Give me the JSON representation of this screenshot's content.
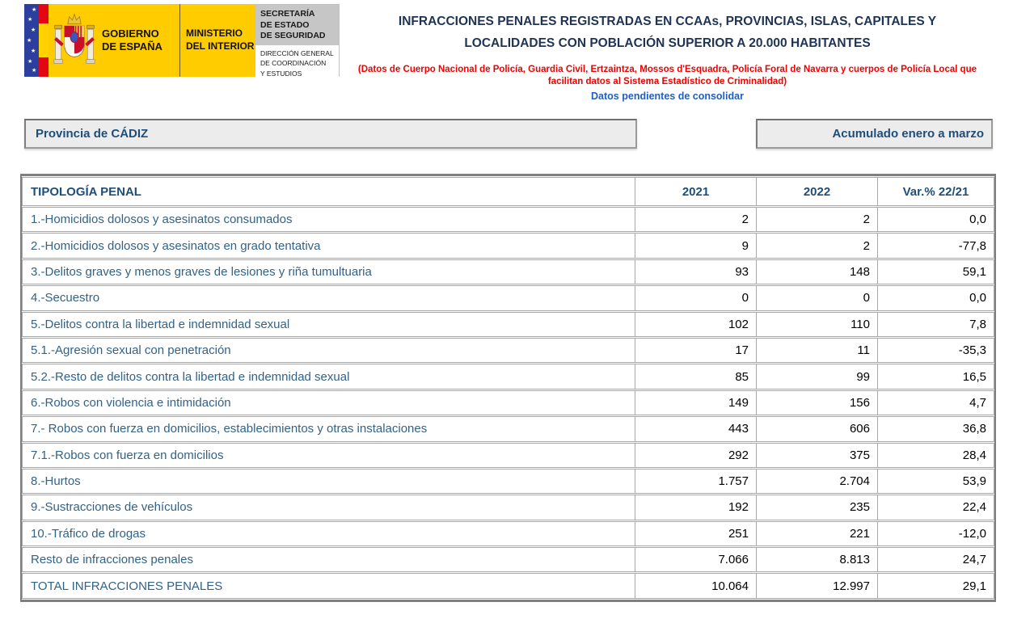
{
  "logo": {
    "gobierno_line1": "GOBIERNO",
    "gobierno_line2": "DE ESPAÑA",
    "ministerio_line1": "MINISTERIO",
    "ministerio_line2": "DEL INTERIOR",
    "secretaria": "SECRETARÍA\nDE ESTADO\nDE SEGURIDAD",
    "direccion": "DIRECCIÓN GENERAL\nDE COORDINACIÓN\nY ESTUDIOS"
  },
  "header": {
    "title_line1": "INFRACCIONES PENALES REGISTRADAS EN CCAAs, PROVINCIAS, ISLAS, CAPITALES Y",
    "title_line2": "LOCALIDADES CON POBLACIÓN SUPERIOR A 20.000 HABITANTES",
    "source_line1": "(Datos de Cuerpo Nacional de Policía, Guardia Civil, Ertzaintza, Mossos d'Esquadra, Policía Foral de Navarra y cuerpos de Policía Local que",
    "source_line2": "facilitan datos al Sistema Estadístico de Criminalidad)",
    "pending_note": "Datos pendientes de consolidar"
  },
  "filters": {
    "province": "Provincia de CÁDIZ",
    "period": "Acumulado enero a marzo"
  },
  "colors": {
    "accent_navy": "#1f4e79",
    "label_blue": "#336287",
    "note_red": "#f20000",
    "note_blue": "#1f5fc4",
    "logo_yellow": "#ffcc00",
    "eu_blue": "#2c3e9e",
    "flag_red": "#e30613"
  },
  "table": {
    "headers": [
      "TIPOLOGÍA PENAL",
      "2021",
      "2022",
      "Var.% 22/21"
    ],
    "rows": [
      {
        "label": "1.-Homicidios dolosos y asesinatos consumados",
        "y2021": "2",
        "y2022": "2",
        "var": "0,0"
      },
      {
        "label": "2.-Homicidios dolosos y asesinatos en grado tentativa",
        "y2021": "9",
        "y2022": "2",
        "var": "-77,8"
      },
      {
        "label": "3.-Delitos graves y menos graves de lesiones y riña tumultuaria",
        "y2021": "93",
        "y2022": "148",
        "var": "59,1"
      },
      {
        "label": "4.-Secuestro",
        "y2021": "0",
        "y2022": "0",
        "var": "0,0"
      },
      {
        "label": "5.-Delitos contra la libertad e indemnidad sexual",
        "y2021": "102",
        "y2022": "110",
        "var": "7,8"
      },
      {
        "label": "5.1.-Agresión sexual con penetración",
        "y2021": "17",
        "y2022": "11",
        "var": "-35,3"
      },
      {
        "label": "5.2.-Resto de delitos contra la libertad e indemnidad sexual",
        "y2021": "85",
        "y2022": "99",
        "var": "16,5"
      },
      {
        "label": "6.-Robos con violencia e intimidación",
        "y2021": "149",
        "y2022": "156",
        "var": "4,7"
      },
      {
        "label": "7.- Robos con fuerza en domicilios, establecimientos y otras instalaciones",
        "y2021": "443",
        "y2022": "606",
        "var": "36,8"
      },
      {
        "label": "7.1.-Robos con fuerza en domicilios",
        "y2021": "292",
        "y2022": "375",
        "var": "28,4"
      },
      {
        "label": "8.-Hurtos",
        "y2021": "1.757",
        "y2022": "2.704",
        "var": "53,9"
      },
      {
        "label": "9.-Sustracciones de vehículos",
        "y2021": "192",
        "y2022": "235",
        "var": "22,4"
      },
      {
        "label": "10.-Tráfico de drogas",
        "y2021": "251",
        "y2022": "221",
        "var": "-12,0"
      },
      {
        "label": "Resto de infracciones penales",
        "y2021": "7.066",
        "y2022": "8.813",
        "var": "24,7"
      },
      {
        "label": "TOTAL INFRACCIONES PENALES",
        "y2021": "10.064",
        "y2022": "12.997",
        "var": "29,1"
      }
    ]
  }
}
